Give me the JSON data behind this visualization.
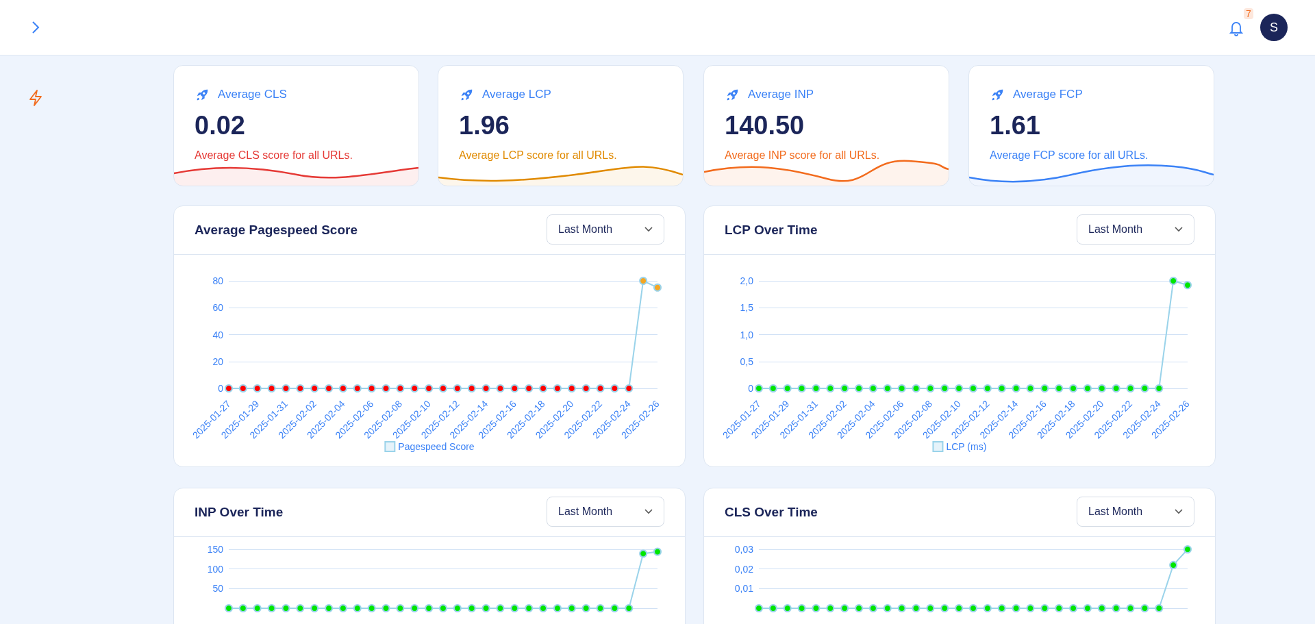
{
  "chart_data": [
    {
      "type": "other",
      "annotations": [
        "7",
        "S"
      ]
    },
    {
      "type": "other",
      "title": "Average CLS",
      "annotations": [
        "0.02"
      ],
      "subtitle": "Average CLS score for all URLs.",
      "color": "#e53935"
    },
    {
      "type": "other",
      "title": "Average LCP",
      "annotations": [
        "1.96"
      ],
      "subtitle": "Average LCP score for all URLs.",
      "color": "#e08a00"
    },
    {
      "type": "other",
      "title": "Average INP",
      "annotations": [
        "140.50"
      ],
      "subtitle": "Average INP score for all URLs.",
      "color": "#f26b1d"
    },
    {
      "type": "other",
      "title": "Average FCP",
      "annotations": [
        "1.61"
      ],
      "subtitle": "Average FCP score for all URLs.",
      "color": "#3b82f6"
    },
    {
      "type": "line",
      "title": "Average Pagespeed Score",
      "annotations": [
        "Last Month"
      ],
      "categories": [
        "2025-01-27",
        null,
        "2025-01-29",
        null,
        "2025-01-31",
        null,
        "2025-02-02",
        null,
        "2025-02-04",
        null,
        "2025-02-06",
        null,
        "2025-02-08",
        null,
        "2025-02-10",
        null,
        "2025-02-12",
        null,
        "2025-02-14",
        null,
        "2025-02-16",
        null,
        "2025-02-18",
        null,
        "2025-02-20",
        null,
        "2025-02-22",
        null,
        "2025-02-24",
        null,
        "2025-02-26"
      ],
      "series": [
        {
          "name": "Pagespeed Score",
          "color": "#9ad3ea",
          "values": [
            0,
            0,
            0,
            0,
            0,
            0,
            0,
            0,
            0,
            0,
            0,
            0,
            0,
            0,
            0,
            0,
            0,
            0,
            0,
            0,
            0,
            0,
            0,
            0,
            0,
            0,
            0,
            0,
            0,
            80,
            75
          ],
          "colors": [
            "#ff0000",
            "#ff0000",
            "#ff0000",
            "#ff0000",
            "#ff0000",
            "#ff0000",
            "#ff0000",
            "#ff0000",
            "#ff0000",
            "#ff0000",
            "#ff0000",
            "#ff0000",
            "#ff0000",
            "#ff0000",
            "#ff0000",
            "#ff0000",
            "#ff0000",
            "#ff0000",
            "#ff0000",
            "#ff0000",
            "#ff0000",
            "#ff0000",
            "#ff0000",
            "#ff0000",
            "#ff0000",
            "#ff0000",
            "#ff0000",
            "#ff0000",
            "#ff0000",
            "#f5a623",
            "#f5a623"
          ]
        }
      ],
      "ylim": [
        0,
        80
      ],
      "yticks": [
        0,
        20,
        40,
        60,
        80
      ],
      "grid": "y",
      "legend": "bottom",
      "marker": "circle"
    },
    {
      "type": "line",
      "title": "LCP Over Time",
      "annotations": [
        "Last Month"
      ],
      "categories": [
        "2025-01-27",
        null,
        "2025-01-29",
        null,
        "2025-01-31",
        null,
        "2025-02-02",
        null,
        "2025-02-04",
        null,
        "2025-02-06",
        null,
        "2025-02-08",
        null,
        "2025-02-10",
        null,
        "2025-02-12",
        null,
        "2025-02-14",
        null,
        "2025-02-16",
        null,
        "2025-02-18",
        null,
        "2025-02-20",
        null,
        "2025-02-22",
        null,
        "2025-02-24",
        null,
        "2025-02-26"
      ],
      "series": [
        {
          "name": "LCP (ms)",
          "color": "#9ad3ea",
          "values": [
            0,
            0,
            0,
            0,
            0,
            0,
            0,
            0,
            0,
            0,
            0,
            0,
            0,
            0,
            0,
            0,
            0,
            0,
            0,
            0,
            0,
            0,
            0,
            0,
            0,
            0,
            0,
            0,
            0,
            2.0,
            1.92
          ],
          "colors": [
            "#00e600",
            "#00e600",
            "#00e600",
            "#00e600",
            "#00e600",
            "#00e600",
            "#00e600",
            "#00e600",
            "#00e600",
            "#00e600",
            "#00e600",
            "#00e600",
            "#00e600",
            "#00e600",
            "#00e600",
            "#00e600",
            "#00e600",
            "#00e600",
            "#00e600",
            "#00e600",
            "#00e600",
            "#00e600",
            "#00e600",
            "#00e600",
            "#00e600",
            "#00e600",
            "#00e600",
            "#00e600",
            "#00e600",
            "#00e600",
            "#00e600"
          ]
        }
      ],
      "ylim": [
        0,
        2
      ],
      "yticks": [
        0,
        {
          "value": 0.5,
          "label": "0,5"
        },
        {
          "value": 1,
          "label": "1,0"
        },
        {
          "value": 1.5,
          "label": "1,5"
        },
        {
          "value": 2,
          "label": "2,0"
        }
      ],
      "grid": "y",
      "legend": "bottom",
      "marker": "circle"
    },
    {
      "type": "line",
      "title": "INP Over Time",
      "annotations": [
        "Last Month"
      ],
      "categories": [
        null,
        null,
        null,
        null,
        null,
        null,
        null,
        null,
        null,
        null,
        null,
        null,
        null,
        null,
        null,
        null,
        null,
        null,
        null,
        null,
        null,
        null,
        null,
        null,
        null,
        null,
        null,
        null,
        null,
        null,
        null
      ],
      "series": [
        {
          "color": "#9ad3ea",
          "values": [
            0,
            0,
            0,
            0,
            0,
            0,
            0,
            0,
            0,
            0,
            0,
            0,
            0,
            0,
            0,
            0,
            0,
            0,
            0,
            0,
            0,
            0,
            0,
            0,
            0,
            0,
            0,
            0,
            0,
            139,
            144
          ],
          "colors": [
            "#00e600",
            "#00e600",
            "#00e600",
            "#00e600",
            "#00e600",
            "#00e600",
            "#00e600",
            "#00e600",
            "#00e600",
            "#00e600",
            "#00e600",
            "#00e600",
            "#00e600",
            "#00e600",
            "#00e600",
            "#00e600",
            "#00e600",
            "#00e600",
            "#00e600",
            "#00e600",
            "#00e600",
            "#00e600",
            "#00e600",
            "#00e600",
            "#00e600",
            "#00e600",
            "#00e600",
            "#00e600",
            "#00e600",
            "#00e600",
            "#00e600"
          ]
        }
      ],
      "ylim": [
        0,
        150
      ],
      "yticks": [
        {
          "value": 0,
          "label": null
        },
        50,
        100,
        150
      ],
      "grid": "y",
      "tick_labels": "y",
      "marker": "circle"
    },
    {
      "type": "line",
      "title": "CLS Over Time",
      "annotations": [
        "Last Month"
      ],
      "categories": [
        null,
        null,
        null,
        null,
        null,
        null,
        null,
        null,
        null,
        null,
        null,
        null,
        null,
        null,
        null,
        null,
        null,
        null,
        null,
        null,
        null,
        null,
        null,
        null,
        null,
        null,
        null,
        null,
        null,
        null,
        null
      ],
      "series": [
        {
          "color": "#9ad3ea",
          "values": [
            0,
            0,
            0,
            0,
            0,
            0,
            0,
            0,
            0,
            0,
            0,
            0,
            0,
            0,
            0,
            0,
            0,
            0,
            0,
            0,
            0,
            0,
            0,
            0,
            0,
            0,
            0,
            0,
            0,
            0.022,
            0.03
          ],
          "colors": [
            "#00e600",
            "#00e600",
            "#00e600",
            "#00e600",
            "#00e600",
            "#00e600",
            "#00e600",
            "#00e600",
            "#00e600",
            "#00e600",
            "#00e600",
            "#00e600",
            "#00e600",
            "#00e600",
            "#00e600",
            "#00e600",
            "#00e600",
            "#00e600",
            "#00e600",
            "#00e600",
            "#00e600",
            "#00e600",
            "#00e600",
            "#00e600",
            "#00e600",
            "#00e600",
            "#00e600",
            "#00e600",
            "#00e600",
            "#00e600",
            "#00e600"
          ]
        }
      ],
      "ylim": [
        0,
        0.03
      ],
      "yticks": [
        {
          "value": 0,
          "label": null
        },
        {
          "value": 0.01,
          "label": "0,01"
        },
        {
          "value": 0.02,
          "label": "0,02"
        },
        {
          "value": 0.03,
          "label": "0,03"
        }
      ],
      "grid": "y",
      "tick_labels": "y",
      "marker": "circle"
    }
  ]
}
